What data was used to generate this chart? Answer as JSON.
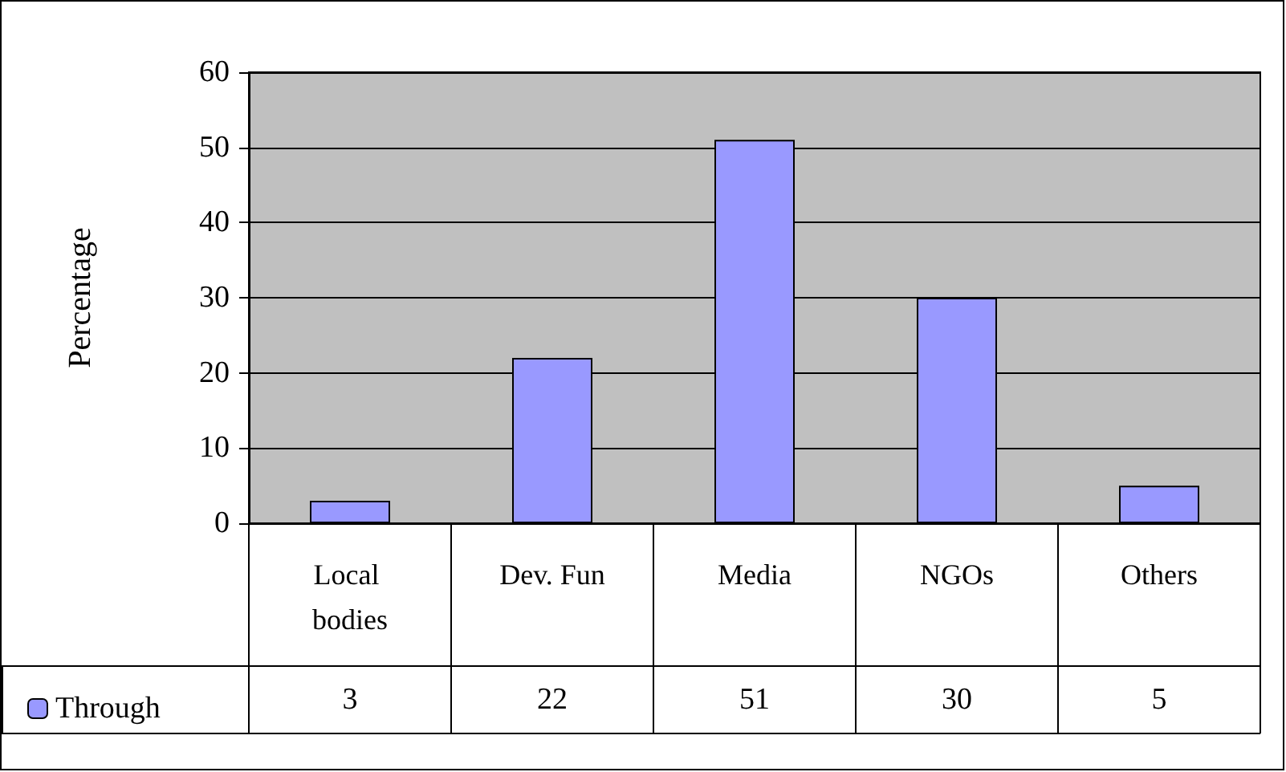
{
  "chart_data": {
    "type": "bar",
    "ylabel": "Percentage",
    "categories": [
      "Local bodies",
      "Dev. Fun",
      "Media",
      "NGOs",
      "Others"
    ],
    "series": [
      {
        "name": "Through",
        "color": "#9999ff",
        "values": [
          3,
          22,
          51,
          30,
          5
        ]
      }
    ],
    "ylim": [
      0,
      60
    ],
    "yticks": [
      0,
      10,
      20,
      30,
      40,
      50,
      60
    ],
    "grid": "y",
    "legend": "bottom left",
    "data_labels": true
  }
}
